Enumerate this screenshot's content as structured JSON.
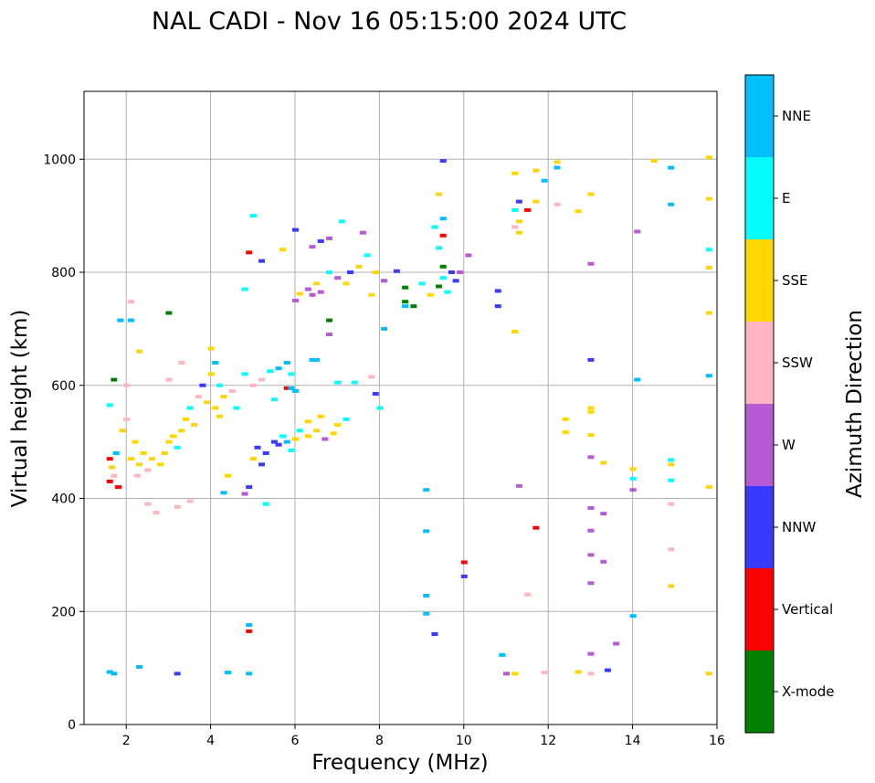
{
  "chart_data": {
    "type": "scatter",
    "title": "NAL CADI - Nov 16 05:15:00 2024 UTC",
    "xlabel": "Frequency (MHz)",
    "ylabel": "Virtual height (km)",
    "xlim": [
      1,
      16
    ],
    "ylim": [
      0,
      1120
    ],
    "xticks": [
      2,
      4,
      6,
      8,
      10,
      12,
      14,
      16
    ],
    "yticks": [
      0,
      200,
      400,
      600,
      800,
      1000
    ],
    "grid": true,
    "colorbar": {
      "label": "Azimuth Direction",
      "categories": [
        {
          "name": "X-mode",
          "color": "#008000"
        },
        {
          "name": "Vertical",
          "color": "#ff0000"
        },
        {
          "name": "NNW",
          "color": "#3a3aff"
        },
        {
          "name": "W",
          "color": "#b65ad6"
        },
        {
          "name": "SSW",
          "color": "#ffb6c1"
        },
        {
          "name": "SSE",
          "color": "#ffd700"
        },
        {
          "name": "E",
          "color": "#00ffff"
        },
        {
          "name": "NNE",
          "color": "#00bfff"
        }
      ]
    },
    "points": [
      {
        "f": 1.6,
        "h": 470,
        "c": "Vertical"
      },
      {
        "f": 1.65,
        "h": 455,
        "c": "SSE"
      },
      {
        "f": 1.6,
        "h": 430,
        "c": "Vertical"
      },
      {
        "f": 1.7,
        "h": 440,
        "c": "SSW"
      },
      {
        "f": 1.75,
        "h": 480,
        "c": "NNE"
      },
      {
        "f": 1.8,
        "h": 420,
        "c": "Vertical"
      },
      {
        "f": 1.6,
        "h": 565,
        "c": "E"
      },
      {
        "f": 1.7,
        "h": 610,
        "c": "X-mode"
      },
      {
        "f": 1.9,
        "h": 520,
        "c": "SSE"
      },
      {
        "f": 2.0,
        "h": 540,
        "c": "SSW"
      },
      {
        "f": 2.0,
        "h": 600,
        "c": "SSW"
      },
      {
        "f": 2.1,
        "h": 470,
        "c": "SSE"
      },
      {
        "f": 2.2,
        "h": 500,
        "c": "SSE"
      },
      {
        "f": 2.25,
        "h": 440,
        "c": "SSW"
      },
      {
        "f": 2.3,
        "h": 460,
        "c": "SSE"
      },
      {
        "f": 2.4,
        "h": 480,
        "c": "SSE"
      },
      {
        "f": 2.5,
        "h": 450,
        "c": "SSW"
      },
      {
        "f": 2.6,
        "h": 470,
        "c": "SSE"
      },
      {
        "f": 2.5,
        "h": 390,
        "c": "SSW"
      },
      {
        "f": 2.7,
        "h": 375,
        "c": "SSW"
      },
      {
        "f": 2.8,
        "h": 460,
        "c": "SSE"
      },
      {
        "f": 2.9,
        "h": 480,
        "c": "SSE"
      },
      {
        "f": 3.0,
        "h": 500,
        "c": "SSE"
      },
      {
        "f": 3.1,
        "h": 510,
        "c": "SSE"
      },
      {
        "f": 3.2,
        "h": 490,
        "c": "E"
      },
      {
        "f": 3.3,
        "h": 520,
        "c": "SSE"
      },
      {
        "f": 3.4,
        "h": 540,
        "c": "SSE"
      },
      {
        "f": 3.5,
        "h": 560,
        "c": "E"
      },
      {
        "f": 3.6,
        "h": 530,
        "c": "SSE"
      },
      {
        "f": 3.7,
        "h": 580,
        "c": "SSW"
      },
      {
        "f": 3.8,
        "h": 600,
        "c": "NNW"
      },
      {
        "f": 3.9,
        "h": 570,
        "c": "SSE"
      },
      {
        "f": 4.0,
        "h": 620,
        "c": "SSE"
      },
      {
        "f": 4.1,
        "h": 640,
        "c": "NNE"
      },
      {
        "f": 4.2,
        "h": 600,
        "c": "E"
      },
      {
        "f": 4.3,
        "h": 580,
        "c": "SSE"
      },
      {
        "f": 4.1,
        "h": 560,
        "c": "SSE"
      },
      {
        "f": 4.2,
        "h": 545,
        "c": "SSE"
      },
      {
        "f": 3.0,
        "h": 610,
        "c": "SSW"
      },
      {
        "f": 3.3,
        "h": 640,
        "c": "SSW"
      },
      {
        "f": 4.0,
        "h": 665,
        "c": "SSE"
      },
      {
        "f": 3.5,
        "h": 395,
        "c": "SSW"
      },
      {
        "f": 3.2,
        "h": 385,
        "c": "SSW"
      },
      {
        "f": 2.3,
        "h": 660,
        "c": "SSE"
      },
      {
        "f": 2.1,
        "h": 748,
        "c": "SSW"
      },
      {
        "f": 1.85,
        "h": 715,
        "c": "NNE"
      },
      {
        "f": 2.1,
        "h": 715,
        "c": "NNE"
      },
      {
        "f": 3.0,
        "h": 728,
        "c": "X-mode"
      },
      {
        "f": 4.5,
        "h": 590,
        "c": "SSW"
      },
      {
        "f": 4.6,
        "h": 560,
        "c": "E"
      },
      {
        "f": 4.8,
        "h": 620,
        "c": "E"
      },
      {
        "f": 5.0,
        "h": 600,
        "c": "SSW"
      },
      {
        "f": 5.2,
        "h": 610,
        "c": "SSW"
      },
      {
        "f": 5.4,
        "h": 625,
        "c": "E"
      },
      {
        "f": 5.6,
        "h": 630,
        "c": "NNE"
      },
      {
        "f": 5.8,
        "h": 640,
        "c": "NNE"
      },
      {
        "f": 5.9,
        "h": 620,
        "c": "E"
      },
      {
        "f": 5.5,
        "h": 575,
        "c": "E"
      },
      {
        "f": 5.8,
        "h": 595,
        "c": "Vertical"
      },
      {
        "f": 6.4,
        "h": 645,
        "c": "NNE"
      },
      {
        "f": 6.5,
        "h": 645,
        "c": "NNE"
      },
      {
        "f": 7.0,
        "h": 605,
        "c": "E"
      },
      {
        "f": 7.8,
        "h": 615,
        "c": "SSW"
      },
      {
        "f": 6.0,
        "h": 590,
        "c": "NNE"
      },
      {
        "f": 5.1,
        "h": 490,
        "c": "NNW"
      },
      {
        "f": 5.3,
        "h": 480,
        "c": "NNW"
      },
      {
        "f": 5.5,
        "h": 500,
        "c": "NNW"
      },
      {
        "f": 5.6,
        "h": 495,
        "c": "NNW"
      },
      {
        "f": 5.7,
        "h": 510,
        "c": "E"
      },
      {
        "f": 5.8,
        "h": 500,
        "c": "NNE"
      },
      {
        "f": 5.9,
        "h": 485,
        "c": "E"
      },
      {
        "f": 6.0,
        "h": 505,
        "c": "SSE"
      },
      {
        "f": 6.1,
        "h": 520,
        "c": "E"
      },
      {
        "f": 6.3,
        "h": 510,
        "c": "SSE"
      },
      {
        "f": 6.5,
        "h": 520,
        "c": "SSE"
      },
      {
        "f": 6.7,
        "h": 505,
        "c": "W"
      },
      {
        "f": 6.9,
        "h": 515,
        "c": "SSE"
      },
      {
        "f": 7.0,
        "h": 530,
        "c": "SSE"
      },
      {
        "f": 7.2,
        "h": 540,
        "c": "E"
      },
      {
        "f": 6.6,
        "h": 545,
        "c": "SSE"
      },
      {
        "f": 5.0,
        "h": 470,
        "c": "SSE"
      },
      {
        "f": 5.2,
        "h": 460,
        "c": "NNW"
      },
      {
        "f": 4.9,
        "h": 420,
        "c": "NNW"
      },
      {
        "f": 4.4,
        "h": 440,
        "c": "SSE"
      },
      {
        "f": 4.3,
        "h": 410,
        "c": "NNE"
      },
      {
        "f": 4.8,
        "h": 408,
        "c": "W"
      },
      {
        "f": 5.3,
        "h": 390,
        "c": "E"
      },
      {
        "f": 6.3,
        "h": 770,
        "c": "W"
      },
      {
        "f": 6.4,
        "h": 760,
        "c": "W"
      },
      {
        "f": 6.5,
        "h": 780,
        "c": "SSE"
      },
      {
        "f": 6.6,
        "h": 765,
        "c": "W"
      },
      {
        "f": 6.0,
        "h": 750,
        "c": "W"
      },
      {
        "f": 6.1,
        "h": 762,
        "c": "SSE"
      },
      {
        "f": 6.8,
        "h": 800,
        "c": "E"
      },
      {
        "f": 7.0,
        "h": 790,
        "c": "W"
      },
      {
        "f": 7.2,
        "h": 780,
        "c": "SSE"
      },
      {
        "f": 7.3,
        "h": 800,
        "c": "NNW"
      },
      {
        "f": 7.5,
        "h": 810,
        "c": "SSE"
      },
      {
        "f": 7.7,
        "h": 830,
        "c": "E"
      },
      {
        "f": 7.9,
        "h": 800,
        "c": "SSE"
      },
      {
        "f": 6.4,
        "h": 845,
        "c": "W"
      },
      {
        "f": 6.6,
        "h": 855,
        "c": "NNW"
      },
      {
        "f": 6.8,
        "h": 860,
        "c": "W"
      },
      {
        "f": 7.1,
        "h": 890,
        "c": "E"
      },
      {
        "f": 7.6,
        "h": 870,
        "c": "W"
      },
      {
        "f": 6.0,
        "h": 875,
        "c": "NNW"
      },
      {
        "f": 5.7,
        "h": 840,
        "c": "SSE"
      },
      {
        "f": 5.2,
        "h": 820,
        "c": "NNW"
      },
      {
        "f": 4.9,
        "h": 835,
        "c": "Vertical"
      },
      {
        "f": 5.0,
        "h": 900,
        "c": "E"
      },
      {
        "f": 4.8,
        "h": 770,
        "c": "E"
      },
      {
        "f": 6.8,
        "h": 715,
        "c": "X-mode"
      },
      {
        "f": 6.8,
        "h": 690,
        "c": "W"
      },
      {
        "f": 7.8,
        "h": 760,
        "c": "SSE"
      },
      {
        "f": 8.1,
        "h": 785,
        "c": "W"
      },
      {
        "f": 8.4,
        "h": 802,
        "c": "NNW"
      },
      {
        "f": 8.6,
        "h": 773,
        "c": "X-mode"
      },
      {
        "f": 8.6,
        "h": 748,
        "c": "X-mode"
      },
      {
        "f": 8.8,
        "h": 740,
        "c": "X-mode"
      },
      {
        "f": 9.0,
        "h": 780,
        "c": "E"
      },
      {
        "f": 9.2,
        "h": 760,
        "c": "SSE"
      },
      {
        "f": 9.4,
        "h": 775,
        "c": "X-mode"
      },
      {
        "f": 9.5,
        "h": 790,
        "c": "E"
      },
      {
        "f": 9.7,
        "h": 800,
        "c": "NNW"
      },
      {
        "f": 9.8,
        "h": 785,
        "c": "NNW"
      },
      {
        "f": 9.9,
        "h": 800,
        "c": "W"
      },
      {
        "f": 8.1,
        "h": 700,
        "c": "NNE"
      },
      {
        "f": 8.6,
        "h": 740,
        "c": "NNE"
      },
      {
        "f": 9.5,
        "h": 810,
        "c": "X-mode"
      },
      {
        "f": 9.6,
        "h": 765,
        "c": "E"
      },
      {
        "f": 9.3,
        "h": 880,
        "c": "E"
      },
      {
        "f": 9.5,
        "h": 895,
        "c": "NNE"
      },
      {
        "f": 9.4,
        "h": 938,
        "c": "SSE"
      },
      {
        "f": 9.5,
        "h": 865,
        "c": "Vertical"
      },
      {
        "f": 9.4,
        "h": 843,
        "c": "E"
      },
      {
        "f": 9.5,
        "h": 997,
        "c": "NNW"
      },
      {
        "f": 10.1,
        "h": 830,
        "c": "W"
      },
      {
        "f": 10.8,
        "h": 767,
        "c": "NNW"
      },
      {
        "f": 10.8,
        "h": 740,
        "c": "NNW"
      },
      {
        "f": 11.2,
        "h": 975,
        "c": "SSE"
      },
      {
        "f": 11.3,
        "h": 925,
        "c": "NNW"
      },
      {
        "f": 11.2,
        "h": 910,
        "c": "E"
      },
      {
        "f": 11.3,
        "h": 890,
        "c": "SSE"
      },
      {
        "f": 11.2,
        "h": 880,
        "c": "SSW"
      },
      {
        "f": 11.3,
        "h": 870,
        "c": "SSE"
      },
      {
        "f": 11.5,
        "h": 910,
        "c": "Vertical"
      },
      {
        "f": 11.7,
        "h": 925,
        "c": "SSE"
      },
      {
        "f": 11.7,
        "h": 980,
        "c": "SSE"
      },
      {
        "f": 11.9,
        "h": 962,
        "c": "NNE"
      },
      {
        "f": 12.2,
        "h": 995,
        "c": "SSE"
      },
      {
        "f": 12.2,
        "h": 985,
        "c": "NNE"
      },
      {
        "f": 12.2,
        "h": 920,
        "c": "SSW"
      },
      {
        "f": 12.7,
        "h": 908,
        "c": "SSE"
      },
      {
        "f": 13.0,
        "h": 938,
        "c": "SSE"
      },
      {
        "f": 13.0,
        "h": 815,
        "c": "W"
      },
      {
        "f": 11.2,
        "h": 695,
        "c": "SSE"
      },
      {
        "f": 14.1,
        "h": 872,
        "c": "W"
      },
      {
        "f": 14.5,
        "h": 997,
        "c": "SSE"
      },
      {
        "f": 14.9,
        "h": 985,
        "c": "NNE"
      },
      {
        "f": 14.9,
        "h": 920,
        "c": "NNE"
      },
      {
        "f": 15.8,
        "h": 1003,
        "c": "SSE"
      },
      {
        "f": 15.8,
        "h": 930,
        "c": "SSE"
      },
      {
        "f": 15.8,
        "h": 840,
        "c": "E"
      },
      {
        "f": 15.8,
        "h": 808,
        "c": "SSE"
      },
      {
        "f": 15.8,
        "h": 728,
        "c": "SSE"
      },
      {
        "f": 14.1,
        "h": 610,
        "c": "NNE"
      },
      {
        "f": 15.8,
        "h": 617,
        "c": "NNE"
      },
      {
        "f": 13.0,
        "h": 645,
        "c": "NNW"
      },
      {
        "f": 13.0,
        "h": 560,
        "c": "SSE"
      },
      {
        "f": 13.0,
        "h": 553,
        "c": "SSE"
      },
      {
        "f": 12.4,
        "h": 540,
        "c": "SSE"
      },
      {
        "f": 12.4,
        "h": 517,
        "c": "SSE"
      },
      {
        "f": 13.0,
        "h": 512,
        "c": "SSE"
      },
      {
        "f": 13.0,
        "h": 473,
        "c": "W"
      },
      {
        "f": 13.3,
        "h": 463,
        "c": "SSE"
      },
      {
        "f": 14.0,
        "h": 452,
        "c": "SSE"
      },
      {
        "f": 14.0,
        "h": 435,
        "c": "E"
      },
      {
        "f": 14.9,
        "h": 468,
        "c": "E"
      },
      {
        "f": 14.9,
        "h": 460,
        "c": "SSE"
      },
      {
        "f": 14.9,
        "h": 432,
        "c": "E"
      },
      {
        "f": 14.0,
        "h": 415,
        "c": "W"
      },
      {
        "f": 15.8,
        "h": 420,
        "c": "SSE"
      },
      {
        "f": 14.9,
        "h": 390,
        "c": "SSW"
      },
      {
        "f": 11.3,
        "h": 422,
        "c": "W"
      },
      {
        "f": 13.0,
        "h": 383,
        "c": "W"
      },
      {
        "f": 13.3,
        "h": 373,
        "c": "W"
      },
      {
        "f": 13.0,
        "h": 343,
        "c": "W"
      },
      {
        "f": 11.7,
        "h": 348,
        "c": "Vertical"
      },
      {
        "f": 13.0,
        "h": 300,
        "c": "W"
      },
      {
        "f": 13.3,
        "h": 288,
        "c": "W"
      },
      {
        "f": 14.9,
        "h": 310,
        "c": "SSW"
      },
      {
        "f": 13.0,
        "h": 250,
        "c": "W"
      },
      {
        "f": 14.9,
        "h": 245,
        "c": "SSE"
      },
      {
        "f": 11.5,
        "h": 230,
        "c": "SSW"
      },
      {
        "f": 14.0,
        "h": 192,
        "c": "NNE"
      },
      {
        "f": 13.6,
        "h": 143,
        "c": "W"
      },
      {
        "f": 13.0,
        "h": 125,
        "c": "W"
      },
      {
        "f": 12.7,
        "h": 93,
        "c": "SSE"
      },
      {
        "f": 13.0,
        "h": 90,
        "c": "SSW"
      },
      {
        "f": 13.4,
        "h": 96,
        "c": "NNW"
      },
      {
        "f": 11.9,
        "h": 92,
        "c": "SSW"
      },
      {
        "f": 11.2,
        "h": 90,
        "c": "SSE"
      },
      {
        "f": 11.0,
        "h": 90,
        "c": "W"
      },
      {
        "f": 10.9,
        "h": 123,
        "c": "NNE"
      },
      {
        "f": 15.8,
        "h": 90,
        "c": "SSE"
      },
      {
        "f": 9.1,
        "h": 415,
        "c": "NNE"
      },
      {
        "f": 9.1,
        "h": 342,
        "c": "NNE"
      },
      {
        "f": 10.0,
        "h": 287,
        "c": "Vertical"
      },
      {
        "f": 10.0,
        "h": 262,
        "c": "NNW"
      },
      {
        "f": 9.1,
        "h": 228,
        "c": "NNE"
      },
      {
        "f": 9.1,
        "h": 196,
        "c": "NNE"
      },
      {
        "f": 9.3,
        "h": 160,
        "c": "NNW"
      },
      {
        "f": 4.9,
        "h": 176,
        "c": "NNE"
      },
      {
        "f": 4.9,
        "h": 165,
        "c": "Vertical"
      },
      {
        "f": 4.4,
        "h": 92,
        "c": "NNE"
      },
      {
        "f": 4.9,
        "h": 90,
        "c": "NNE"
      },
      {
        "f": 3.2,
        "h": 90,
        "c": "NNW"
      },
      {
        "f": 2.3,
        "h": 102,
        "c": "NNE"
      },
      {
        "f": 1.6,
        "h": 93,
        "c": "NNE"
      },
      {
        "f": 1.7,
        "h": 90,
        "c": "NNE"
      },
      {
        "f": 5.9,
        "h": 595,
        "c": "NNE"
      },
      {
        "f": 6.3,
        "h": 536,
        "c": "SSE"
      },
      {
        "f": 7.4,
        "h": 605,
        "c": "E"
      },
      {
        "f": 7.9,
        "h": 585,
        "c": "NNW"
      },
      {
        "f": 8.0,
        "h": 560,
        "c": "E"
      }
    ]
  }
}
